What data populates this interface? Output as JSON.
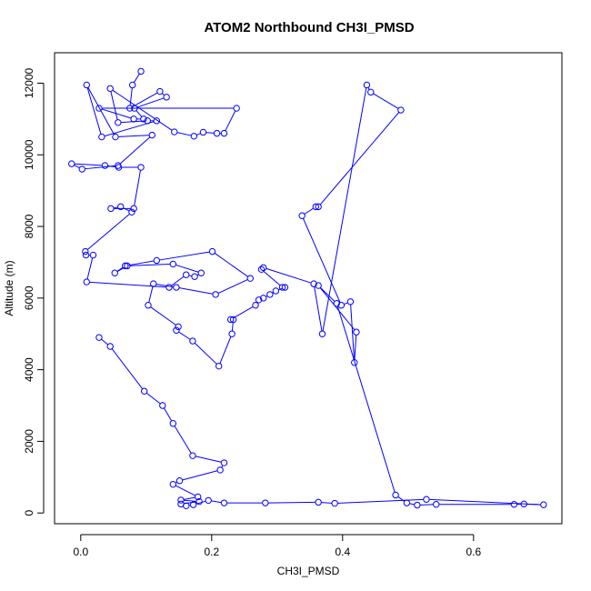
{
  "chart_data": {
    "type": "line",
    "title": "ATOM2 Northbound CH3I_PMSD",
    "xlabel": "CH3I_PMSD",
    "ylabel": "Altitude (m)",
    "xlim": [
      -0.04,
      0.735
    ],
    "ylim": [
      -300,
      12850
    ],
    "x_ticks": [
      0.0,
      0.2,
      0.4,
      0.6
    ],
    "x_tick_labels": [
      "0.0",
      "0.2",
      "0.4",
      "0.6"
    ],
    "y_ticks": [
      0,
      2000,
      4000,
      6000,
      8000,
      10000,
      12000
    ],
    "y_tick_labels": [
      "0",
      "2000",
      "4000",
      "6000",
      "8000",
      "10000",
      "12000"
    ],
    "grid": false,
    "legend": "none",
    "line_color": "#0000ff",
    "marker": "open-circle",
    "series": [
      {
        "x": [
          0.092,
          0.079,
          0.075,
          0.121,
          0.131,
          0.082,
          0.096,
          0.081,
          0.028,
          0.238,
          0.219,
          0.208,
          0.187,
          0.173,
          0.143,
          0.045,
          0.057,
          0.102,
          0.116,
          0.032,
          0.009,
          0.053,
          0.109,
          0.057,
          0.002,
          -0.014,
          0.037,
          0.058,
          0.092,
          0.081,
          0.046,
          0.061,
          0.078,
          0.007,
          0.008,
          0.019,
          0.009,
          0.135,
          0.161,
          0.174,
          0.184,
          0.141,
          0.071,
          0.052,
          0.068,
          0.116,
          0.201,
          0.259,
          0.206,
          0.146,
          0.111,
          0.103,
          0.149,
          0.146,
          0.171,
          0.211,
          0.231,
          0.233,
          0.229,
          0.267,
          0.272,
          0.279,
          0.289,
          0.298,
          0.312,
          0.308,
          0.276,
          0.279,
          0.356,
          0.369,
          0.437,
          0.443,
          0.489,
          0.363,
          0.359,
          0.338,
          0.398,
          0.412,
          0.418,
          0.421,
          0.363,
          0.391,
          0.481,
          0.498,
          0.514,
          0.543,
          0.662,
          0.677,
          0.707,
          0.528,
          0.388,
          0.363,
          0.282,
          0.219,
          0.195,
          0.172,
          0.161,
          0.153,
          0.181,
          0.153,
          0.179,
          0.141,
          0.151,
          0.213,
          0.219,
          0.171,
          0.141,
          0.125,
          0.097,
          0.045,
          0.028
        ],
        "y": [
          12330,
          11950,
          11300,
          11770,
          11610,
          11300,
          11000,
          11000,
          11300,
          11300,
          10600,
          10600,
          10630,
          10520,
          10640,
          11850,
          10900,
          10950,
          10950,
          10500,
          11950,
          10500,
          10550,
          9700,
          9600,
          9750,
          9700,
          9650,
          9650,
          8500,
          8500,
          8550,
          8400,
          7300,
          7200,
          7200,
          6450,
          6300,
          6650,
          6600,
          6700,
          6950,
          6900,
          6700,
          6900,
          7050,
          7300,
          6550,
          6100,
          6300,
          6400,
          5800,
          5200,
          5100,
          4800,
          4100,
          5000,
          5400,
          5400,
          5800,
          5950,
          6000,
          6100,
          6200,
          6300,
          6300,
          6800,
          6850,
          6400,
          5000,
          11950,
          11750,
          11250,
          8550,
          8550,
          8300,
          5800,
          5900,
          4200,
          5050,
          6350,
          5850,
          500,
          280,
          220,
          240,
          240,
          250,
          230,
          380,
          270,
          300,
          280,
          280,
          350,
          230,
          200,
          250,
          320,
          360,
          450,
          800,
          900,
          1200,
          1400,
          1600,
          2500,
          3000,
          3400,
          4650,
          4900
        ]
      }
    ]
  }
}
